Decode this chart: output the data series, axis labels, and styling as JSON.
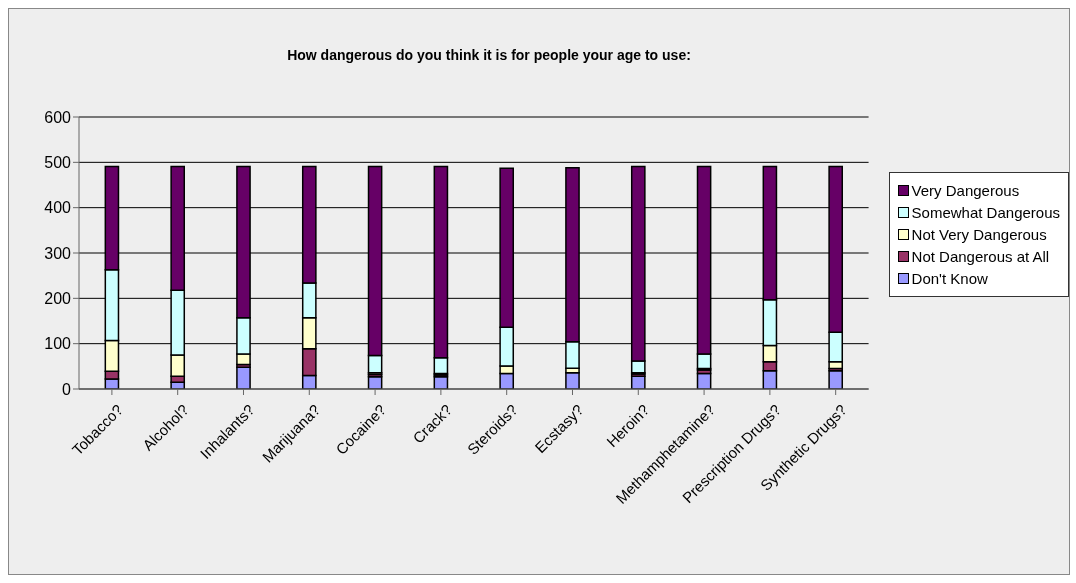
{
  "chart_data": {
    "type": "bar",
    "title": "How dangerous do you think it is for people your age to use:",
    "stacked": true,
    "categories": [
      "Tobacco?",
      "Alcohol?",
      "Inhalants?",
      "Marijuana?",
      "Cocaine?",
      "Crack?",
      "Steroids?",
      "Ecstasy?",
      "Heroin?",
      "Methamphetamine?",
      "Prescription Drugs?",
      "Synthetic Drugs?"
    ],
    "series": [
      {
        "name": "Don't Know",
        "color": "#9999ff",
        "values": [
          22,
          15,
          48,
          30,
          27,
          27,
          34,
          36,
          28,
          34,
          40,
          40
        ]
      },
      {
        "name": "Not Dangerous at All",
        "color": "#993366",
        "values": [
          17,
          13,
          6,
          59,
          5,
          4,
          null,
          null,
          5,
          8,
          20,
          5
        ]
      },
      {
        "name": "Not Very Dangerous",
        "color": "#ffffcc",
        "values": [
          68,
          47,
          23,
          68,
          4,
          3,
          17,
          10,
          3,
          3,
          36,
          15
        ]
      },
      {
        "name": "Somewhat Dangerous",
        "color": "#ccffff",
        "values": [
          156,
          143,
          80,
          77,
          38,
          35,
          85,
          58,
          26,
          32,
          101,
          65
        ]
      },
      {
        "name": "Very Dangerous",
        "color": "#660066",
        "values": [
          228,
          273,
          334,
          257,
          417,
          422,
          351,
          384,
          429,
          414,
          294,
          366
        ]
      }
    ],
    "ylim": [
      0,
      600
    ],
    "yticks": [
      0,
      100,
      200,
      300,
      400,
      500,
      600
    ],
    "grid": "y",
    "legend": "right"
  }
}
